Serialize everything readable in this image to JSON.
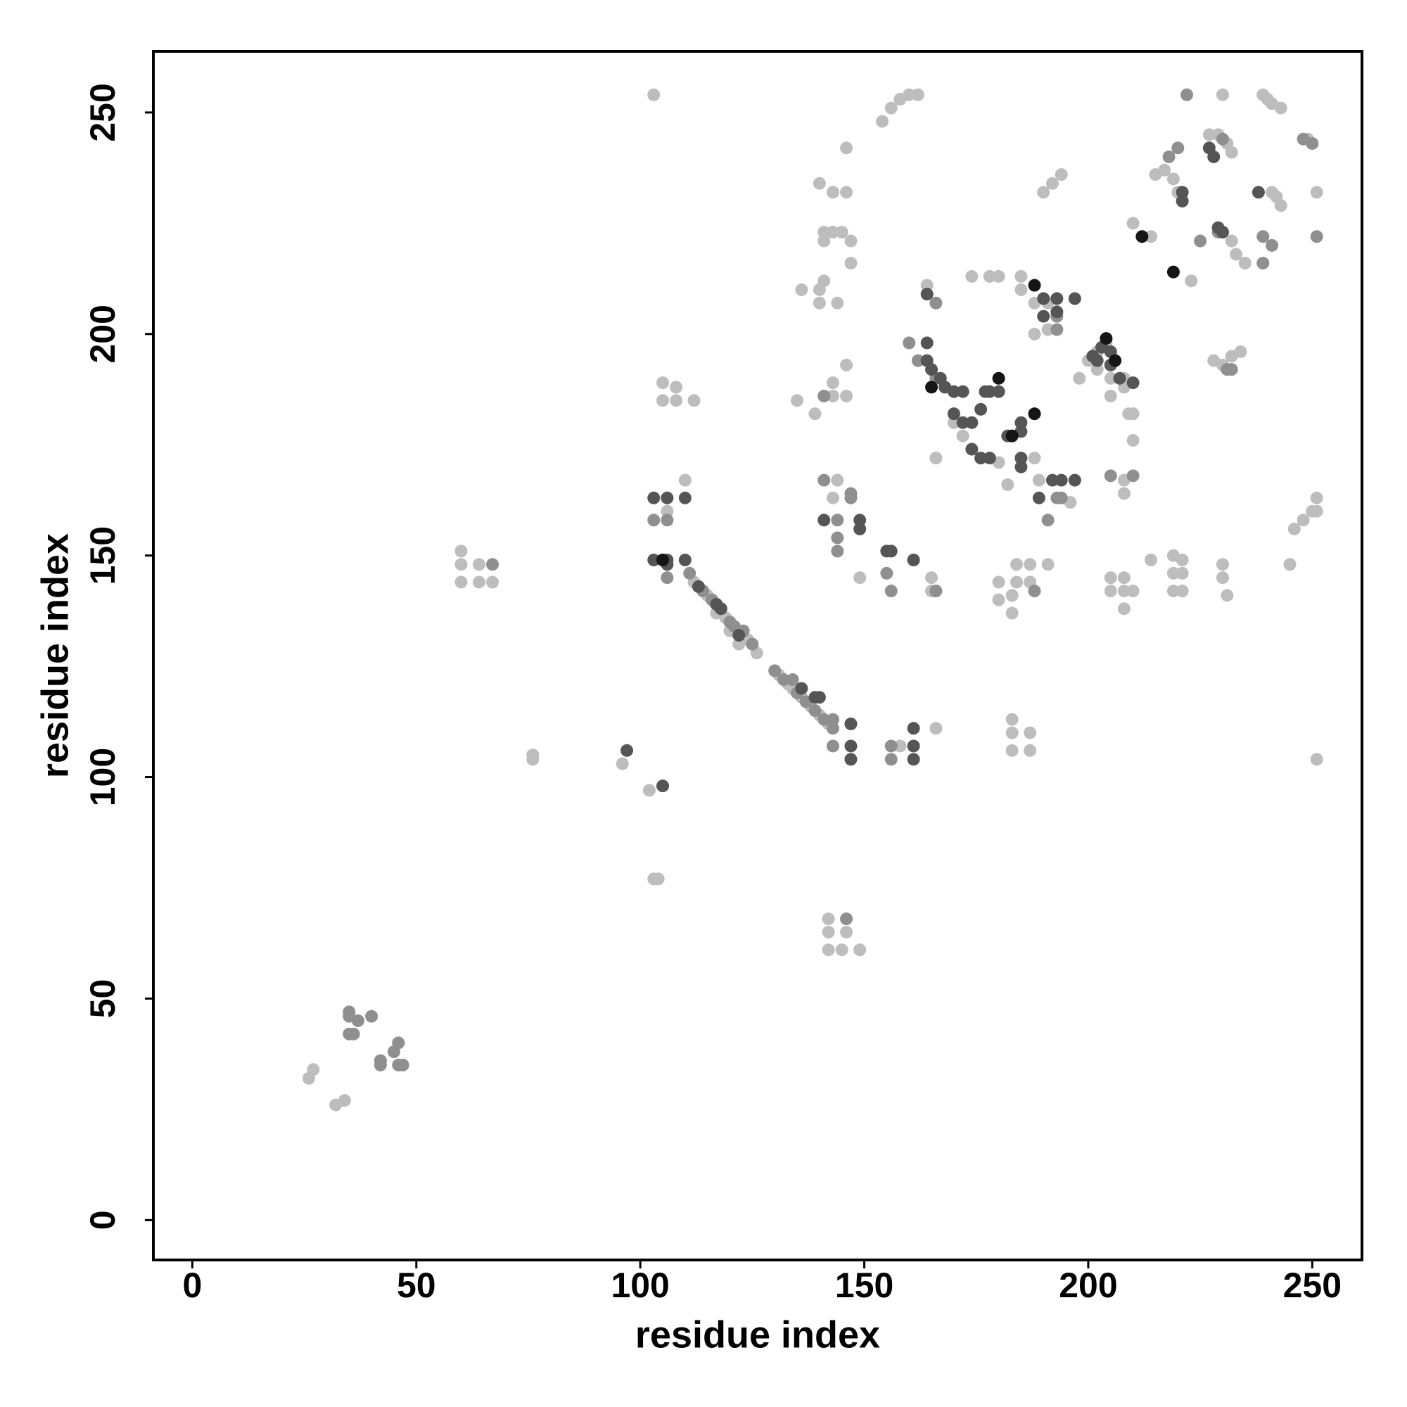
{
  "chart_data": {
    "type": "scatter",
    "xlabel": "residue index",
    "ylabel": "residue index",
    "xlim": [
      -8.7,
      261.1
    ],
    "ylim": [
      -9,
      263.8
    ],
    "xticks": [
      0,
      50,
      100,
      150,
      200,
      250
    ],
    "yticks": [
      0,
      50,
      100,
      150,
      200,
      250
    ],
    "series": [
      {
        "color": "#bdbdbd",
        "x": [
          26,
          27,
          32,
          34,
          60,
          60,
          60,
          64,
          64,
          67,
          76,
          76,
          96,
          102,
          103,
          104,
          103,
          105,
          105,
          108,
          108,
          112,
          110,
          106,
          112,
          113,
          115,
          117,
          119,
          120,
          122,
          124,
          126,
          131,
          133,
          134,
          136,
          138,
          140,
          142,
          142,
          142,
          142,
          145,
          149,
          146,
          183,
          183,
          187,
          183,
          187,
          166,
          158,
          154,
          156,
          158,
          160,
          162,
          140,
          143,
          146,
          141,
          141,
          143,
          145,
          147,
          147,
          136,
          140,
          141,
          144,
          140,
          146,
          135,
          139,
          143,
          146,
          146,
          143,
          144,
          143,
          149,
          165,
          165,
          164,
          174,
          178,
          180,
          185,
          185,
          188,
          191,
          188,
          191,
          170,
          172,
          166,
          180,
          188,
          189,
          196,
          182,
          198,
          200,
          202,
          204,
          202,
          205,
          205,
          208,
          208,
          209,
          210,
          210,
          208,
          208,
          180,
          184,
          187,
          183,
          180,
          183,
          184,
          187,
          191,
          205,
          208,
          205,
          208,
          210,
          208,
          214,
          219,
          221,
          219,
          221,
          219,
          221,
          230,
          230,
          231,
          245,
          246,
          248,
          250,
          251,
          251,
          251,
          190,
          192,
          194,
          210,
          214,
          215,
          217,
          219,
          220,
          223,
          230,
          232,
          233,
          235,
          230,
          227,
          229,
          231,
          232,
          241,
          242,
          243,
          239,
          240,
          241,
          243,
          249,
          251,
          228,
          230,
          232,
          234,
          235
        ],
        "y": [
          32,
          34,
          26,
          27,
          151,
          148,
          144,
          148,
          144,
          144,
          105,
          104,
          103,
          97,
          77,
          77,
          254,
          189,
          185,
          188,
          185,
          185,
          167,
          160,
          144,
          143,
          141,
          137,
          136,
          133,
          130,
          131,
          128,
          123,
          121,
          120,
          118,
          116,
          114,
          112,
          68,
          65,
          61,
          61,
          61,
          65,
          113,
          110,
          110,
          106,
          106,
          111,
          107,
          248,
          251,
          253,
          254,
          254,
          234,
          232,
          232,
          223,
          221,
          223,
          223,
          221,
          216,
          210,
          210,
          212,
          207,
          207,
          242,
          185,
          182,
          189,
          193,
          186,
          186,
          167,
          163,
          145,
          145,
          142,
          211,
          213,
          213,
          213,
          213,
          210,
          207,
          207,
          200,
          201,
          180,
          177,
          172,
          171,
          172,
          167,
          162,
          166,
          190,
          194,
          196,
          198,
          192,
          190,
          186,
          190,
          188,
          182,
          182,
          176,
          167,
          164,
          144,
          144,
          144,
          141,
          140,
          137,
          148,
          148,
          148,
          145,
          145,
          142,
          142,
          142,
          138,
          149,
          150,
          149,
          146,
          146,
          142,
          142,
          148,
          145,
          141,
          148,
          156,
          158,
          160,
          163,
          160,
          104,
          232,
          234,
          236,
          225,
          222,
          236,
          237,
          235,
          232,
          212,
          223,
          221,
          218,
          216,
          254,
          245,
          245,
          243,
          241,
          232,
          231,
          229,
          254,
          253,
          252,
          251,
          244,
          232,
          194,
          193,
          195,
          196,
          216
        ]
      },
      {
        "color": "#8f8f8f",
        "x": [
          35,
          35,
          35,
          36,
          37,
          40,
          42,
          42,
          45,
          46,
          46,
          47,
          67,
          106,
          103,
          106,
          111,
          114,
          116,
          118,
          120,
          121,
          123,
          125,
          130,
          132,
          134,
          135,
          137,
          139,
          141,
          143,
          143,
          143,
          156,
          156,
          146,
          141,
          141,
          147,
          147,
          144,
          144,
          144,
          155,
          156,
          161,
          166,
          166,
          160,
          162,
          166,
          168,
          193,
          193,
          191,
          193,
          194,
          205,
          188,
          218,
          220,
          222,
          225,
          229,
          239,
          239,
          241,
          248,
          250,
          251,
          230,
          231,
          232,
          210
        ],
        "y": [
          47,
          46,
          42,
          42,
          45,
          46,
          36,
          35,
          38,
          40,
          35,
          35,
          148,
          158,
          158,
          145,
          146,
          142,
          140,
          138,
          135,
          134,
          133,
          130,
          124,
          122,
          122,
          119,
          117,
          115,
          113,
          111,
          113,
          107,
          107,
          104,
          68,
          186,
          167,
          164,
          163,
          158,
          154,
          151,
          146,
          142,
          149,
          142,
          207,
          198,
          194,
          190,
          188,
          204,
          201,
          158,
          163,
          163,
          168,
          142,
          240,
          242,
          254,
          221,
          223,
          216,
          222,
          220,
          244,
          243,
          222,
          244,
          192,
          192,
          168
        ]
      },
      {
        "color": "#555555",
        "x": [
          97,
          105,
          103,
          106,
          110,
          103,
          106,
          106,
          110,
          117,
          113,
          118,
          122,
          136,
          140,
          147,
          147,
          147,
          161,
          161,
          161,
          139,
          149,
          149,
          141,
          155,
          156,
          161,
          164,
          164,
          164,
          165,
          167,
          168,
          170,
          172,
          170,
          172,
          174,
          176,
          177,
          178,
          180,
          174,
          176,
          178,
          185,
          185,
          185,
          185,
          182,
          190,
          193,
          193,
          197,
          190,
          192,
          194,
          197,
          189,
          201,
          205,
          205,
          207,
          210,
          202,
          221,
          221,
          227,
          228,
          238,
          229,
          230,
          203
        ],
        "y": [
          106,
          98,
          163,
          163,
          163,
          149,
          149,
          148,
          149,
          139,
          143,
          138,
          132,
          120,
          118,
          112,
          107,
          104,
          111,
          107,
          104,
          118,
          158,
          156,
          158,
          151,
          151,
          149,
          209,
          198,
          194,
          192,
          190,
          188,
          187,
          187,
          182,
          180,
          180,
          183,
          187,
          187,
          187,
          174,
          172,
          172,
          172,
          170,
          180,
          178,
          177,
          208,
          208,
          205,
          208,
          204,
          167,
          167,
          167,
          163,
          195,
          196,
          193,
          190,
          189,
          194,
          230,
          232,
          242,
          240,
          232,
          224,
          223,
          197
        ]
      },
      {
        "color": "#151515",
        "x": [
          105,
          180,
          188,
          212,
          219,
          188,
          204,
          206,
          165,
          183
        ],
        "y": [
          149,
          190,
          182,
          222,
          214,
          211,
          199,
          194,
          188,
          177
        ]
      }
    ]
  }
}
